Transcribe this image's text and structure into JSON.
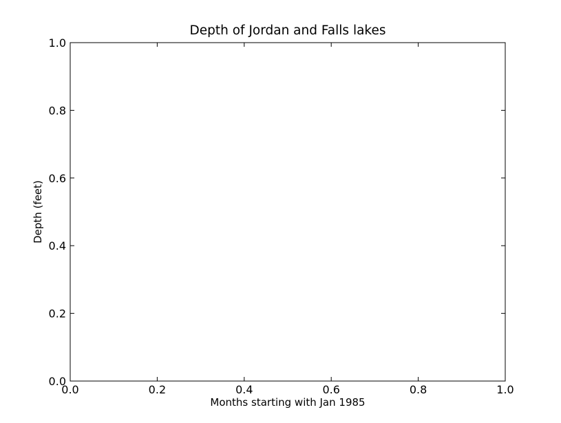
{
  "chart_data": {
    "type": "line",
    "title": "Depth of Jordan and Falls lakes",
    "xlabel": "Months starting with Jan 1985",
    "ylabel": "Depth (feet)",
    "xlim": [
      0.0,
      1.0
    ],
    "ylim": [
      0.0,
      1.0
    ],
    "x_ticks": [
      0.0,
      0.2,
      0.4,
      0.6,
      0.8,
      1.0
    ],
    "y_ticks": [
      0.0,
      0.2,
      0.4,
      0.6,
      0.8,
      1.0
    ],
    "x_tick_labels": [
      "0.0",
      "0.2",
      "0.4",
      "0.6",
      "0.8",
      "1.0"
    ],
    "y_tick_labels": [
      "0.0",
      "0.2",
      "0.4",
      "0.6",
      "0.8",
      "1.0"
    ],
    "grid": false,
    "series": [],
    "colors": {
      "axis": "#000000",
      "background": "#ffffff"
    }
  }
}
